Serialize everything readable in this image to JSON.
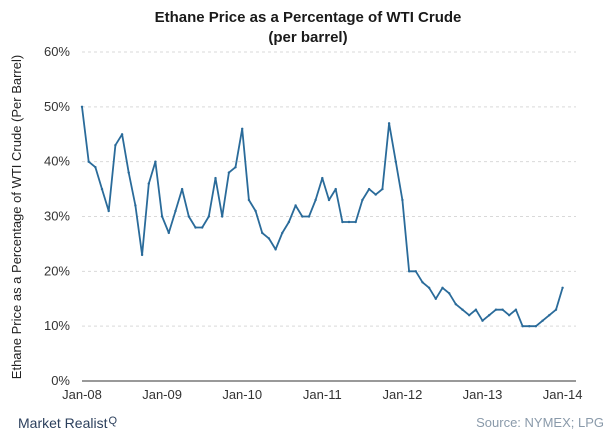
{
  "chart_data": {
    "type": "line",
    "title": "Ethane  Price  as a Percentage  of WTI Crude",
    "subtitle": "(per barrel)",
    "xlabel": "",
    "ylabel": "Ethane Price as a Percentage of WTI Crude (Per Barrel)",
    "ylim": [
      0,
      60
    ],
    "y_ticks": [
      "0%",
      "10%",
      "20%",
      "30%",
      "40%",
      "50%",
      "60%"
    ],
    "x_ticks": [
      "Jan-08",
      "Jan-09",
      "Jan-10",
      "Jan-11",
      "Jan-12",
      "Jan-13",
      "Jan-14"
    ],
    "grid": true,
    "series": [
      {
        "color": "#2a6b9a",
        "x": [
          "2008-01",
          "2008-02",
          "2008-03",
          "2008-04",
          "2008-05",
          "2008-06",
          "2008-07",
          "2008-08",
          "2008-09",
          "2008-10",
          "2008-11",
          "2008-12",
          "2009-01",
          "2009-02",
          "2009-03",
          "2009-04",
          "2009-05",
          "2009-06",
          "2009-07",
          "2009-08",
          "2009-09",
          "2009-10",
          "2009-11",
          "2009-12",
          "2010-01",
          "2010-02",
          "2010-03",
          "2010-04",
          "2010-05",
          "2010-06",
          "2010-07",
          "2010-08",
          "2010-09",
          "2010-10",
          "2010-11",
          "2010-12",
          "2011-01",
          "2011-02",
          "2011-03",
          "2011-04",
          "2011-05",
          "2011-06",
          "2011-07",
          "2011-08",
          "2011-09",
          "2011-10",
          "2011-11",
          "2011-12",
          "2012-01",
          "2012-02",
          "2012-03",
          "2012-04",
          "2012-05",
          "2012-06",
          "2012-07",
          "2012-08",
          "2012-09",
          "2012-10",
          "2012-11",
          "2012-12",
          "2013-01",
          "2013-02",
          "2013-03",
          "2013-04",
          "2013-05",
          "2013-06",
          "2013-07",
          "2013-08",
          "2013-09",
          "2013-10",
          "2013-11",
          "2013-12",
          "2014-01"
        ],
        "values": [
          50,
          40,
          39,
          35,
          31,
          43,
          45,
          38,
          32,
          23,
          36,
          40,
          30,
          27,
          31,
          35,
          30,
          28,
          28,
          30,
          37,
          30,
          38,
          39,
          46,
          33,
          31,
          27,
          26,
          24,
          27,
          29,
          32,
          30,
          30,
          33,
          37,
          33,
          35,
          29,
          29,
          29,
          33,
          35,
          34,
          35,
          47,
          40,
          33,
          20,
          20,
          18,
          17,
          15,
          17,
          16,
          14,
          13,
          12,
          13,
          11,
          12,
          13,
          13,
          12,
          13,
          10,
          10,
          10,
          11,
          12,
          13,
          17
        ]
      }
    ]
  },
  "footer": {
    "brand": "Market Realist",
    "brand_mark": "Q",
    "source": "Source: NYMEX; LPG"
  }
}
